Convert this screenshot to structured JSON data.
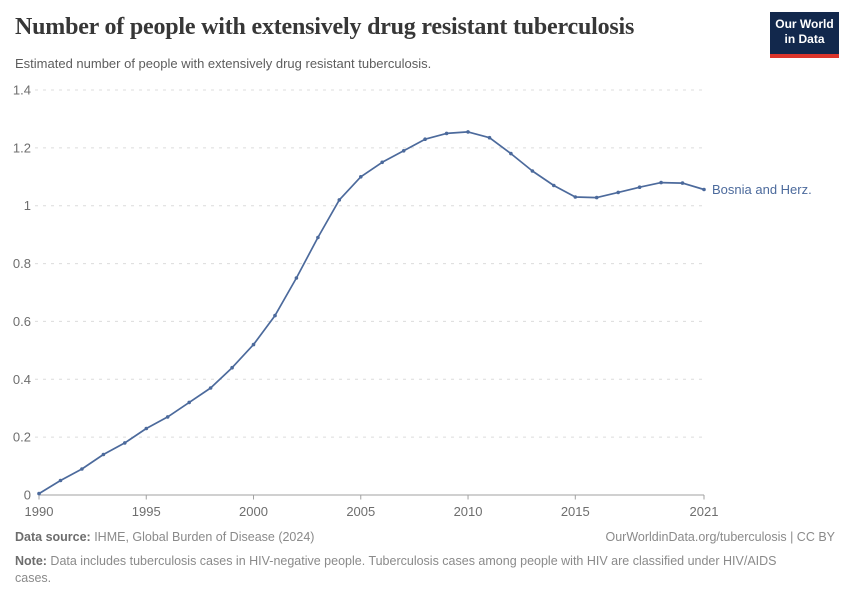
{
  "header": {
    "title": "Number of people with extensively drug resistant tuberculosis",
    "subtitle": "Estimated number of people with extensively drug resistant tuberculosis.",
    "logo_line1": "Our World",
    "logo_line2": "in Data"
  },
  "chart_data": {
    "type": "line",
    "title": "Number of people with extensively drug resistant tuberculosis",
    "subtitle": "Estimated number of people with extensively drug resistant tuberculosis.",
    "x": [
      1990,
      1991,
      1992,
      1993,
      1994,
      1995,
      1996,
      1997,
      1998,
      1999,
      2000,
      2001,
      2002,
      2003,
      2004,
      2005,
      2006,
      2007,
      2008,
      2009,
      2010,
      2011,
      2012,
      2013,
      2014,
      2015,
      2016,
      2017,
      2018,
      2019,
      2020,
      2021
    ],
    "series": [
      {
        "name": "Bosnia and Herz.",
        "color": "#4c6a9c",
        "values": [
          0.005,
          0.05,
          0.09,
          0.14,
          0.18,
          0.23,
          0.27,
          0.32,
          0.37,
          0.44,
          0.52,
          0.62,
          0.75,
          0.89,
          1.02,
          1.1,
          1.15,
          1.19,
          1.23,
          1.25,
          1.255,
          1.235,
          1.18,
          1.12,
          1.07,
          1.03,
          1.028,
          1.046,
          1.064,
          1.08,
          1.078,
          1.056
        ]
      }
    ],
    "xlim": [
      1990,
      2021
    ],
    "ylim": [
      0,
      1.4
    ],
    "x_ticks": [
      1990,
      1995,
      2000,
      2005,
      2010,
      2015,
      2021
    ],
    "x_tick_labels": [
      "1990",
      "1995",
      "2000",
      "2005",
      "2010",
      "2015",
      "2021"
    ],
    "y_ticks": [
      0,
      0.2,
      0.4,
      0.6,
      0.8,
      1,
      1.2,
      1.4
    ],
    "y_tick_labels": [
      "0",
      "0.2",
      "0.4",
      "0.6",
      "0.8",
      "1",
      "1.2",
      "1.4"
    ],
    "grid": "horizontal-dashed",
    "legend_position": "end-of-line-label",
    "ylabel": "",
    "xlabel": ""
  },
  "footer": {
    "datasource_label": "Data source:",
    "datasource_text": " IHME, Global Burden of Disease (2024)",
    "link_text": "OurWorldinData.org/tuberculosis | CC BY",
    "note_label": "Note:",
    "note_text": " Data includes tuberculosis cases in HIV-negative people. Tuberculosis cases among people with HIV are classified under HIV/AIDS cases."
  },
  "colors": {
    "line": "#4c6a9c",
    "grid": "#dcdcdc",
    "axis": "#a1a1a1",
    "tick_text": "#6e6e6e",
    "title_text": "#373737",
    "subtitle_text": "#5d5d5d",
    "logo_bg": "#12284c",
    "logo_red": "#dc352b"
  }
}
